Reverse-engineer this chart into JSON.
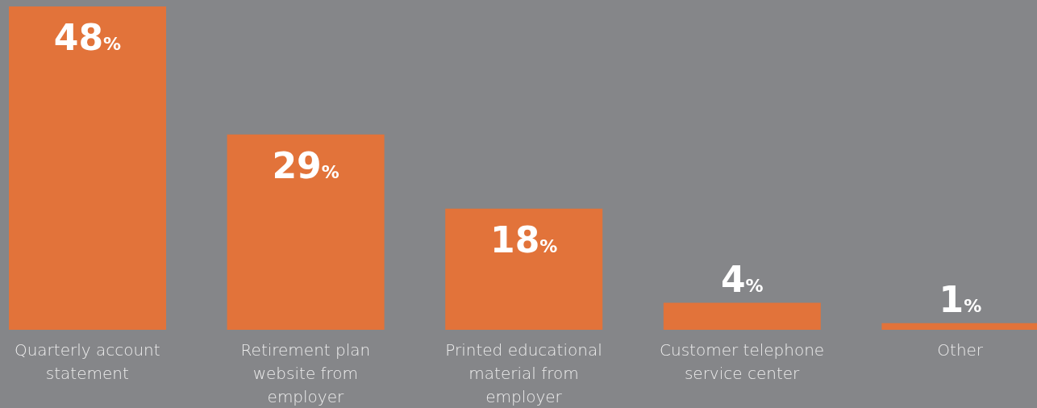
{
  "chart_data": {
    "type": "bar",
    "categories": [
      "Quarterly account statement",
      "Retirement plan website from employer",
      "Printed educational material from employer",
      "Customer telephone service center",
      "Other"
    ],
    "values": [
      48,
      29,
      18,
      4,
      1
    ],
    "value_labels": [
      "48%",
      "29%",
      "18%",
      "4%",
      "1%"
    ],
    "color": "#e2733a",
    "ylim": [
      0,
      48
    ]
  }
}
